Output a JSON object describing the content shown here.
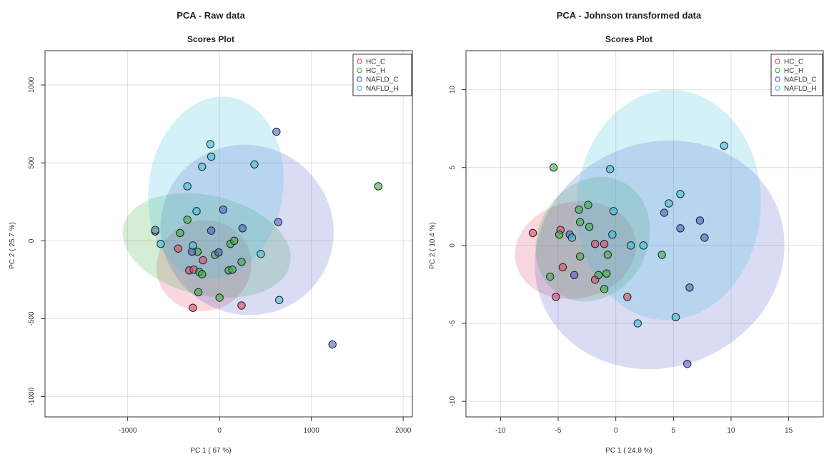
{
  "chart_data": [
    {
      "type": "scatter",
      "title": "PCA - Raw data",
      "subtitle": "Scores Plot",
      "xlabel": "PC 1 ( 67 %)",
      "ylabel": "PC 2 ( 25.7 %)",
      "xlim": [
        -1900,
        2100
      ],
      "ylim": [
        -1130,
        1220
      ],
      "xticks": [
        -1000,
        0,
        1000,
        2000
      ],
      "yticks": [
        -1000,
        -500,
        0,
        500,
        1000
      ],
      "grid": true,
      "legend_position": "top-right",
      "series": [
        {
          "name": "HC_C",
          "color": "#e24a6b",
          "points": [
            [
              -700,
              60
            ],
            [
              -450,
              -50
            ],
            [
              -330,
              -190
            ],
            [
              -280,
              -185
            ],
            [
              -180,
              -125
            ],
            [
              -290,
              -430
            ],
            [
              240,
              -415
            ]
          ],
          "ellipse": {
            "cx": -170,
            "cy": -160,
            "rx": 520,
            "ry": 290,
            "angle": -20
          }
        },
        {
          "name": "HC_H",
          "color": "#3cb043",
          "points": [
            [
              -430,
              50
            ],
            [
              -350,
              135
            ],
            [
              -240,
              -70
            ],
            [
              -220,
              -200
            ],
            [
              -190,
              -215
            ],
            [
              -230,
              -330
            ],
            [
              -50,
              -90
            ],
            [
              120,
              -20
            ],
            [
              160,
              0
            ],
            [
              100,
              -190
            ],
            [
              140,
              -185
            ],
            [
              240,
              -135
            ],
            [
              0,
              -365
            ],
            [
              1730,
              350
            ]
          ],
          "ellipse": {
            "cx": -140,
            "cy": -30,
            "rx": 930,
            "ry": 320,
            "angle": 13
          }
        },
        {
          "name": "NAFLD_C",
          "color": "#5160c8",
          "points": [
            [
              -300,
              -70
            ],
            [
              -90,
              65
            ],
            [
              -10,
              -75
            ],
            [
              40,
              200
            ],
            [
              250,
              80
            ],
            [
              620,
              700
            ],
            [
              640,
              120
            ],
            [
              1230,
              -665
            ]
          ],
          "ellipse": {
            "cx": 300,
            "cy": 70,
            "rx": 920,
            "ry": 560,
            "angle": -58
          }
        },
        {
          "name": "NAFLD_H",
          "color": "#3fbfdf",
          "points": [
            [
              -700,
              70
            ],
            [
              -640,
              -20
            ],
            [
              -290,
              -30
            ],
            [
              -250,
              190
            ],
            [
              -350,
              350
            ],
            [
              -190,
              475
            ],
            [
              -90,
              540
            ],
            [
              -100,
              620
            ],
            [
              380,
              490
            ],
            [
              450,
              -85
            ],
            [
              650,
              -380
            ]
          ],
          "ellipse": {
            "cx": -40,
            "cy": 340,
            "rx": 1000,
            "ry": 430,
            "angle": -81
          }
        }
      ]
    },
    {
      "type": "scatter",
      "title": "PCA - Johnson transformed data",
      "subtitle": "Scores Plot",
      "xlabel": "PC 1 ( 24.8 %)",
      "ylabel": "PC 2 ( 10.4 %)",
      "xlim": [
        -13,
        18
      ],
      "ylim": [
        -11,
        12.5
      ],
      "xticks": [
        -10,
        -5,
        0,
        5,
        10,
        15
      ],
      "yticks": [
        -10,
        -5,
        0,
        5,
        10
      ],
      "grid": true,
      "legend_position": "top-right",
      "series": [
        {
          "name": "HC_C",
          "color": "#e24a6b",
          "points": [
            [
              -7.2,
              0.8
            ],
            [
              -4.8,
              1.0
            ],
            [
              -1.8,
              0.1
            ],
            [
              -1.0,
              0.1
            ],
            [
              -4.6,
              -1.4
            ],
            [
              -1.8,
              -2.2
            ],
            [
              -5.2,
              -3.3
            ],
            [
              1.0,
              -3.3
            ]
          ],
          "ellipse": {
            "cx": -3.5,
            "cy": -0.3,
            "rx": 5.3,
            "ry": 3.1,
            "angle": -12
          }
        },
        {
          "name": "HC_H",
          "color": "#3cb043",
          "points": [
            [
              -5.4,
              5.0
            ],
            [
              -3.2,
              2.3
            ],
            [
              -2.4,
              2.6
            ],
            [
              -3.1,
              1.5
            ],
            [
              -2.3,
              1.2
            ],
            [
              -4.9,
              0.7
            ],
            [
              -3.1,
              -0.7
            ],
            [
              -0.7,
              -0.6
            ],
            [
              -1.5,
              -1.9
            ],
            [
              -0.8,
              -1.8
            ],
            [
              -1.0,
              -2.8
            ],
            [
              -5.7,
              -2.0
            ],
            [
              4.0,
              -0.6
            ]
          ],
          "ellipse": {
            "cx": -2.0,
            "cy": 0.4,
            "rx": 5.6,
            "ry": 3.5,
            "angle": -60
          }
        },
        {
          "name": "NAFLD_C",
          "color": "#5160c8",
          "points": [
            [
              -4.0,
              0.7
            ],
            [
              -3.6,
              -1.9
            ],
            [
              4.2,
              2.1
            ],
            [
              5.6,
              1.1
            ],
            [
              7.3,
              1.6
            ],
            [
              7.7,
              0.5
            ],
            [
              6.4,
              -2.7
            ],
            [
              6.2,
              -7.6
            ]
          ],
          "ellipse": {
            "cx": 3.8,
            "cy": -0.6,
            "rx": 11,
            "ry": 7.2,
            "angle": -22
          }
        },
        {
          "name": "NAFLD_H",
          "color": "#3fbfdf",
          "points": [
            [
              -3.8,
              0.5
            ],
            [
              -0.5,
              4.9
            ],
            [
              -0.2,
              2.2
            ],
            [
              -0.3,
              0.7
            ],
            [
              1.3,
              0.0
            ],
            [
              2.4,
              0.0
            ],
            [
              4.6,
              2.7
            ],
            [
              5.6,
              3.3
            ],
            [
              9.4,
              6.4
            ],
            [
              5.2,
              -4.6
            ],
            [
              1.9,
              -5.0
            ]
          ],
          "ellipse": {
            "cx": 4.6,
            "cy": 2.6,
            "rx": 10,
            "ry": 5.9,
            "angle": -87
          }
        }
      ]
    }
  ]
}
